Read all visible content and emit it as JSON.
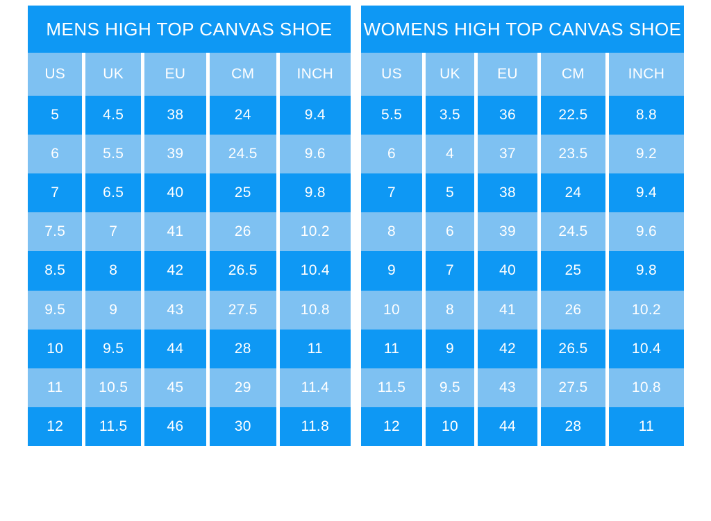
{
  "colors": {
    "primary_blue": "#0E98F4",
    "light_blue": "#7EC1F2",
    "text_white": "#FFFFFF",
    "page_background": "#FFFFFF"
  },
  "chart_data": [
    {
      "type": "table",
      "title": "MENS HIGH TOP CANVAS SHOE",
      "columns": [
        "US",
        "UK",
        "EU",
        "CM",
        "INCH"
      ],
      "rows": [
        [
          "5",
          "4.5",
          "38",
          "24",
          "9.4"
        ],
        [
          "6",
          "5.5",
          "39",
          "24.5",
          "9.6"
        ],
        [
          "7",
          "6.5",
          "40",
          "25",
          "9.8"
        ],
        [
          "7.5",
          "7",
          "41",
          "26",
          "10.2"
        ],
        [
          "8.5",
          "8",
          "42",
          "26.5",
          "10.4"
        ],
        [
          "9.5",
          "9",
          "43",
          "27.5",
          "10.8"
        ],
        [
          "10",
          "9.5",
          "44",
          "28",
          "11"
        ],
        [
          "11",
          "10.5",
          "45",
          "29",
          "11.4"
        ],
        [
          "12",
          "11.5",
          "46",
          "30",
          "11.8"
        ]
      ],
      "layout": {
        "row_shading": "alternating, first row dark",
        "header_shading": "light",
        "grid": "white vertical separators"
      }
    },
    {
      "type": "table",
      "title": "WOMENS HIGH TOP CANVAS SHOE",
      "columns": [
        "US",
        "UK",
        "EU",
        "CM",
        "INCH"
      ],
      "rows": [
        [
          "5.5",
          "3.5",
          "36",
          "22.5",
          "8.8"
        ],
        [
          "6",
          "4",
          "37",
          "23.5",
          "9.2"
        ],
        [
          "7",
          "5",
          "38",
          "24",
          "9.4"
        ],
        [
          "8",
          "6",
          "39",
          "24.5",
          "9.6"
        ],
        [
          "9",
          "7",
          "40",
          "25",
          "9.8"
        ],
        [
          "10",
          "8",
          "41",
          "26",
          "10.2"
        ],
        [
          "11",
          "9",
          "42",
          "26.5",
          "10.4"
        ],
        [
          "11.5",
          "9.5",
          "43",
          "27.5",
          "10.8"
        ],
        [
          "12",
          "10",
          "44",
          "28",
          "11"
        ]
      ],
      "layout": {
        "row_shading": "alternating, first row dark",
        "header_shading": "light",
        "grid": "white vertical separators"
      }
    }
  ]
}
